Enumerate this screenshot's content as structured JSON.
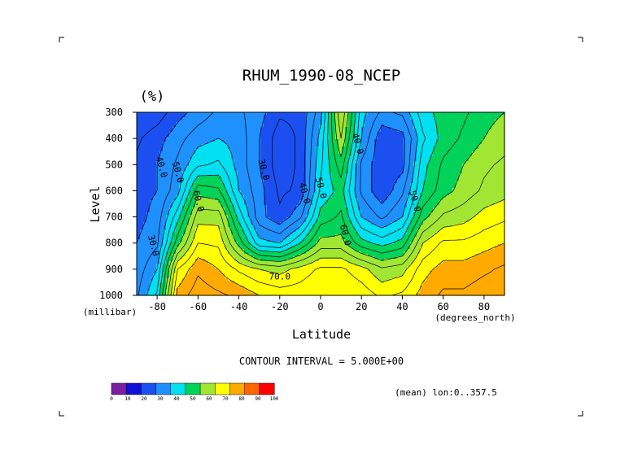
{
  "chart_data": {
    "type": "heatmap",
    "title": "RHUM_1990-08_NCEP",
    "unit": "(%)",
    "ylabel": "Level",
    "y_unit": "(millibar)",
    "xlabel": "Latitude",
    "x_unit": "(degrees_north)",
    "contour_interval_text": "CONTOUR INTERVAL = 5.000E+00",
    "mean_text": "(mean) lon:0..357.5",
    "xlim": [
      -90,
      90
    ],
    "ylim": [
      1000,
      300
    ],
    "x_ticks": [
      -80,
      -60,
      -40,
      -20,
      0,
      20,
      40,
      60,
      80
    ],
    "y_ticks": [
      300,
      400,
      500,
      600,
      700,
      800,
      900,
      1000
    ],
    "contour_labels": [
      {
        "text": "30.0",
        "lat": -82,
        "lev": 810
      },
      {
        "text": "40.0",
        "lat": -78,
        "lev": 510
      },
      {
        "text": "50.0",
        "lat": -70,
        "lev": 530
      },
      {
        "text": "60.0",
        "lat": -60,
        "lev": 640
      },
      {
        "text": "30.0",
        "lat": -28,
        "lev": 520
      },
      {
        "text": "40.0",
        "lat": -8,
        "lev": 610
      },
      {
        "text": "50.0",
        "lat": 0,
        "lev": 590
      },
      {
        "text": "60.0",
        "lat": 12,
        "lev": 770
      },
      {
        "text": "40.0",
        "lat": 18,
        "lev": 420
      },
      {
        "text": "50.0",
        "lat": 46,
        "lev": 640
      },
      {
        "text": "70.0",
        "lat": -20,
        "lev": 930
      }
    ],
    "colorbar": {
      "ticks": [
        "0",
        "10",
        "20",
        "30",
        "40",
        "50",
        "60",
        "70",
        "80",
        "90",
        "100"
      ],
      "colors": [
        "#7a1fa2",
        "#1010d8",
        "#1b4ff0",
        "#1e90ff",
        "#00e0f0",
        "#00d25a",
        "#a0e632",
        "#ffff00",
        "#ffaa00",
        "#ff6400",
        "#ff0000"
      ]
    },
    "grid": {
      "lats": [
        -90,
        -80,
        -70,
        -60,
        -50,
        -40,
        -30,
        -20,
        -10,
        0,
        10,
        20,
        30,
        40,
        50,
        60,
        70,
        80,
        90
      ],
      "levels": [
        300,
        400,
        500,
        600,
        700,
        800,
        900,
        1000
      ],
      "values": [
        [
          20,
          22,
          28,
          32,
          36,
          36,
          32,
          26,
          26,
          38,
          70,
          42,
          34,
          36,
          48,
          52,
          54,
          58,
          60
        ],
        [
          24,
          28,
          33,
          38,
          40,
          38,
          30,
          22,
          26,
          42,
          65,
          40,
          26,
          28,
          44,
          52,
          56,
          60,
          63
        ],
        [
          26,
          30,
          36,
          44,
          46,
          38,
          30,
          22,
          26,
          44,
          58,
          34,
          26,
          28,
          48,
          56,
          60,
          64,
          66
        ],
        [
          28,
          30,
          38,
          58,
          56,
          40,
          32,
          24,
          26,
          46,
          52,
          34,
          26,
          34,
          50,
          58,
          62,
          66,
          68
        ],
        [
          28,
          32,
          48,
          68,
          68,
          48,
          32,
          26,
          34,
          52,
          56,
          40,
          34,
          40,
          58,
          66,
          68,
          72,
          74
        ],
        [
          30,
          34,
          58,
          75,
          74,
          58,
          42,
          40,
          50,
          62,
          62,
          52,
          48,
          52,
          70,
          76,
          76,
          78,
          80
        ],
        [
          32,
          40,
          75,
          84,
          80,
          74,
          70,
          68,
          72,
          76,
          76,
          72,
          66,
          68,
          78,
          82,
          82,
          84,
          86
        ],
        [
          34,
          46,
          82,
          88,
          86,
          84,
          80,
          78,
          78,
          80,
          80,
          78,
          74,
          76,
          82,
          86,
          86,
          88,
          88
        ]
      ]
    }
  }
}
